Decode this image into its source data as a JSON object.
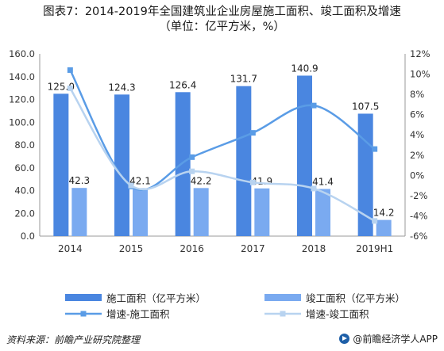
{
  "title_line1": "图表7：2014-2019年全国建筑业企业房屋施工面积、竣工面积及增速",
  "title_line2": "（单位：亿平方米，%）",
  "chart_data": {
    "type": "bar",
    "categories": [
      "2014",
      "2015",
      "2016",
      "2017",
      "2018",
      "2019H1"
    ],
    "series": [
      {
        "name": "施工面积（亿平方米）",
        "kind": "bar",
        "axis": "left",
        "color": "#4a86e0",
        "values": [
          125.0,
          124.3,
          126.4,
          131.7,
          140.9,
          107.5
        ],
        "labels": [
          "125.0",
          "124.3",
          "126.4",
          "131.7",
          "140.9",
          "107.5"
        ]
      },
      {
        "name": "竣工面积（亿平方米）",
        "kind": "bar",
        "axis": "left",
        "color": "#7aaaf0",
        "values": [
          42.3,
          42.1,
          42.2,
          41.9,
          41.4,
          14.2
        ],
        "labels": [
          "42.3",
          "42.1",
          "42.2",
          "41.9",
          "41.4",
          "14.2"
        ]
      },
      {
        "name": "增速-施工面积",
        "kind": "line",
        "axis": "right",
        "color": "#5a9ce6",
        "values": [
          10.4,
          -1.1,
          1.8,
          4.2,
          6.9,
          2.6
        ]
      },
      {
        "name": "增速-竣工面积",
        "kind": "line",
        "axis": "right",
        "color": "#b8d3f0",
        "values": [
          8.6,
          -1.0,
          0.4,
          -0.7,
          -1.3,
          -4.5
        ]
      }
    ],
    "yleft": {
      "min": 0,
      "max": 160,
      "step": 20,
      "ticks": [
        "0.0",
        "20.0",
        "40.0",
        "60.0",
        "80.0",
        "100.0",
        "120.0",
        "140.0",
        "160.0"
      ]
    },
    "yright": {
      "min": -6,
      "max": 12,
      "step": 2,
      "ticks": [
        "-6%",
        "-4%",
        "-2%",
        "0%",
        "2%",
        "4%",
        "6%",
        "8%",
        "10%",
        "12%"
      ]
    },
    "grid": false
  },
  "legend": {
    "bar1": "施工面积（亿平方米）",
    "bar2": "竣工面积（亿平方米）",
    "line1": "增速-施工面积",
    "line2": "增速-竣工面积"
  },
  "footer": {
    "source": "资料来源：前瞻产业研究院整理",
    "brand": "@前瞻经济学人APP"
  },
  "colors": {
    "bar1": "#4a86e0",
    "bar2": "#7aaaf0",
    "line1": "#5a9ce6",
    "line2": "#b8d3f0",
    "axis": "#999999"
  }
}
